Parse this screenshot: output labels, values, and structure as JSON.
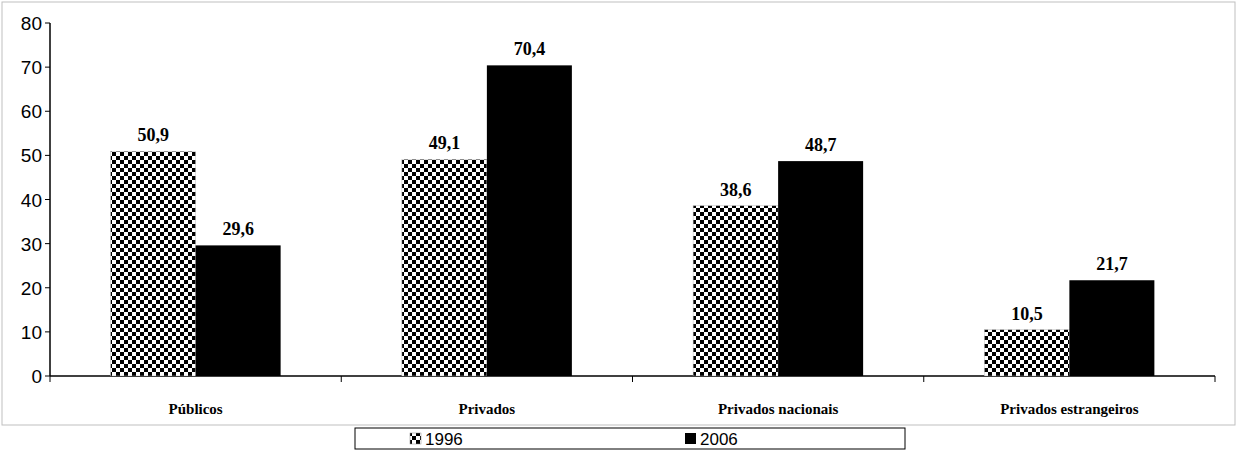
{
  "chart_data": {
    "type": "bar",
    "categories": [
      "Públicos",
      "Privados",
      "Privados nacionais",
      "Privados estrangeiros"
    ],
    "series": [
      {
        "name": "1996",
        "color": "#000000",
        "values": [
          50.9,
          49.1,
          38.6,
          10.5
        ],
        "value_labels": [
          "50,9",
          "49,1",
          "38,6",
          "10,5"
        ]
      },
      {
        "name": "2006",
        "color": "#000000",
        "values": [
          29.6,
          70.4,
          48.7,
          21.7
        ],
        "value_labels": [
          "29,6",
          "70,4",
          "48,7",
          "21,7"
        ]
      }
    ],
    "ylim": [
      0,
      80
    ],
    "yticks": [
      0,
      10,
      20,
      30,
      40,
      50,
      60,
      70,
      80
    ],
    "grid": false,
    "legend": "bottom",
    "data_labels": true
  }
}
